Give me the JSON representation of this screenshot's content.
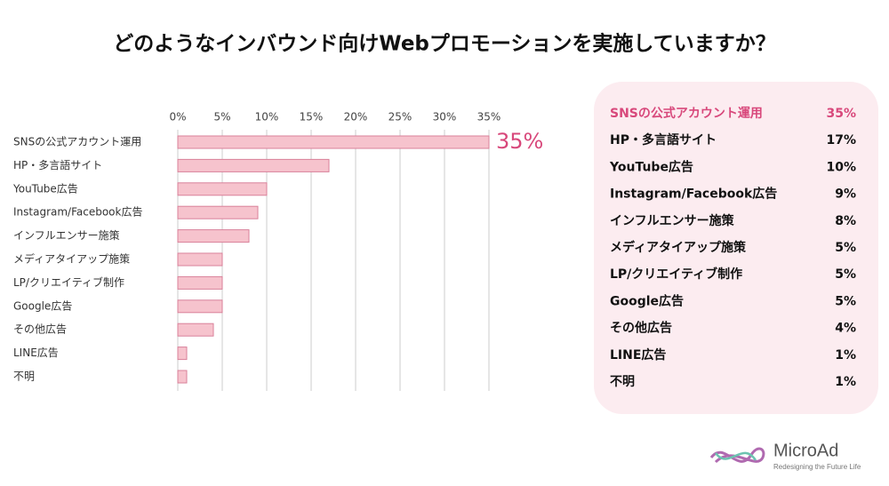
{
  "chart_data": {
    "type": "bar",
    "orientation": "horizontal",
    "title": "どのようなインバウンド向けWebプロモーションを実施していますか？",
    "categories": [
      "SNSの公式アカウント運用",
      "HP・多言語サイト",
      "YouTube広告",
      "Instagram/Facebook広告",
      "インフルエンサー施策",
      "メディアタイアップ施策",
      "LP/クリエイティブ制作",
      "Google広告",
      "その他広告",
      "LINE広告",
      "不明"
    ],
    "values": [
      35,
      17,
      10,
      9,
      8,
      5,
      5,
      5,
      4,
      1,
      1
    ],
    "value_labels": [
      "35%",
      "17%",
      "10%",
      "9%",
      "8%",
      "5%",
      "5%",
      "5%",
      "4%",
      "1%",
      "1%"
    ],
    "color": "#f6c3cd",
    "edge_color": "#d9819a",
    "highlight_color": "#d8487b",
    "xlim": [
      0,
      35
    ],
    "xticks": [
      {
        "value": 0,
        "label": "0%"
      },
      {
        "value": 5,
        "label": "5%"
      },
      {
        "value": 10,
        "label": "10%"
      },
      {
        "value": 15,
        "label": "15%"
      },
      {
        "value": 20,
        "label": "20%"
      },
      {
        "value": 25,
        "label": "25%"
      },
      {
        "value": 30,
        "label": "30%"
      },
      {
        "value": 35,
        "label": "35%"
      }
    ],
    "grid": true
  },
  "logo": {
    "name": "MicroAd",
    "tagline": "Redesigning the Future Life"
  }
}
